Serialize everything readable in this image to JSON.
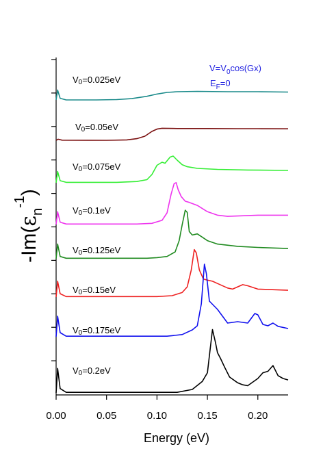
{
  "chart_data": {
    "type": "line",
    "xlabel": "Energy (eV)",
    "ylabel": "-Im(εn -1)",
    "ylabel_parts": {
      "prefix": "-Im(",
      "epsilon": "ε",
      "sub": "n",
      "sup": "-1",
      "suffix": ")"
    },
    "xlim": [
      0.0,
      0.23
    ],
    "xticks": [
      "0.00",
      "0.05",
      "0.10",
      "0.15",
      "0.20"
    ],
    "xtick_values": [
      0.0,
      0.05,
      0.1,
      0.15,
      0.2
    ],
    "yticks_visible": true,
    "grid": false,
    "annotation": {
      "potential": "V=V0cos(Gx)",
      "potential_parts": {
        "a": "V=V",
        "sub": "0",
        "b": "cos(Gx)"
      },
      "fermi": "EF=0",
      "fermi_parts": {
        "a": "E",
        "sub": "F",
        "b": "=0"
      },
      "color": "#2020e0"
    },
    "series": [
      {
        "label": "V0=0.025eV",
        "label_parts": {
          "a": "V",
          "sub": "0",
          "b": "=0.025eV"
        },
        "color": "#1a8a8a",
        "points": [
          [
            0.0,
            0.0
          ],
          [
            0.0015,
            0.6
          ],
          [
            0.004,
            0.1
          ],
          [
            0.01,
            0.0
          ],
          [
            0.04,
            0.0
          ],
          [
            0.06,
            0.02
          ],
          [
            0.075,
            0.08
          ],
          [
            0.09,
            0.22
          ],
          [
            0.1,
            0.36
          ],
          [
            0.11,
            0.46
          ],
          [
            0.12,
            0.5
          ],
          [
            0.14,
            0.52
          ],
          [
            0.17,
            0.5
          ],
          [
            0.2,
            0.5
          ],
          [
            0.23,
            0.48
          ]
        ]
      },
      {
        "label": "V0=0.05eV",
        "label_parts": {
          "a": "V",
          "sub": "0",
          "b": "=0.05eV"
        },
        "color": "#7a0f0f",
        "points": [
          [
            0.0,
            0.0
          ],
          [
            0.002,
            0.08
          ],
          [
            0.006,
            0.01
          ],
          [
            0.05,
            0.0
          ],
          [
            0.07,
            0.03
          ],
          [
            0.08,
            0.12
          ],
          [
            0.088,
            0.3
          ],
          [
            0.095,
            0.65
          ],
          [
            0.1,
            0.82
          ],
          [
            0.105,
            0.88
          ],
          [
            0.12,
            0.86
          ],
          [
            0.15,
            0.86
          ],
          [
            0.18,
            0.85
          ],
          [
            0.2,
            0.85
          ],
          [
            0.23,
            0.84
          ]
        ]
      },
      {
        "label": "V0=0.075eV",
        "label_parts": {
          "a": "V",
          "sub": "0",
          "b": "=0.075eV"
        },
        "color": "#33ee33",
        "points": [
          [
            0.0,
            0.0
          ],
          [
            0.0015,
            0.55
          ],
          [
            0.004,
            0.1
          ],
          [
            0.01,
            0.02
          ],
          [
            0.06,
            0.02
          ],
          [
            0.08,
            0.06
          ],
          [
            0.09,
            0.15
          ],
          [
            0.095,
            0.4
          ],
          [
            0.1,
            0.85
          ],
          [
            0.105,
            1.0
          ],
          [
            0.108,
            0.95
          ],
          [
            0.113,
            1.25
          ],
          [
            0.116,
            1.3
          ],
          [
            0.12,
            1.1
          ],
          [
            0.125,
            0.88
          ],
          [
            0.13,
            0.78
          ],
          [
            0.14,
            0.7
          ],
          [
            0.16,
            0.65
          ],
          [
            0.19,
            0.62
          ],
          [
            0.23,
            0.6
          ]
        ]
      },
      {
        "label": "V0=0.1eV",
        "label_parts": {
          "a": "V",
          "sub": "0",
          "b": "=0.1eV"
        },
        "color": "#ee33ee",
        "points": [
          [
            0.0,
            0.0
          ],
          [
            0.0015,
            0.55
          ],
          [
            0.004,
            0.1
          ],
          [
            0.01,
            0.02
          ],
          [
            0.08,
            0.02
          ],
          [
            0.095,
            0.05
          ],
          [
            0.105,
            0.18
          ],
          [
            0.11,
            0.5
          ],
          [
            0.114,
            1.3
          ],
          [
            0.117,
            1.75
          ],
          [
            0.119,
            1.8
          ],
          [
            0.121,
            1.5
          ],
          [
            0.124,
            1.2
          ],
          [
            0.128,
            1.0
          ],
          [
            0.132,
            0.95
          ],
          [
            0.14,
            0.82
          ],
          [
            0.15,
            0.55
          ],
          [
            0.16,
            0.4
          ],
          [
            0.17,
            0.35
          ],
          [
            0.2,
            0.4
          ],
          [
            0.23,
            0.4
          ]
        ]
      },
      {
        "label": "V0=0.125eV",
        "label_parts": {
          "a": "V",
          "sub": "0",
          "b": "=0.125eV"
        },
        "color": "#1f8a1f",
        "points": [
          [
            0.0,
            0.0
          ],
          [
            0.0015,
            0.65
          ],
          [
            0.004,
            0.1
          ],
          [
            0.01,
            0.02
          ],
          [
            0.09,
            0.02
          ],
          [
            0.1,
            0.05
          ],
          [
            0.11,
            0.1
          ],
          [
            0.118,
            0.3
          ],
          [
            0.122,
            0.8
          ],
          [
            0.125,
            1.5
          ],
          [
            0.128,
            2.15
          ],
          [
            0.13,
            2.05
          ],
          [
            0.132,
            1.2
          ],
          [
            0.135,
            1.05
          ],
          [
            0.14,
            1.1
          ],
          [
            0.145,
            0.95
          ],
          [
            0.15,
            0.8
          ],
          [
            0.16,
            0.65
          ],
          [
            0.18,
            0.55
          ],
          [
            0.2,
            0.5
          ],
          [
            0.23,
            0.45
          ]
        ]
      },
      {
        "label": "V0=0.15eV",
        "label_parts": {
          "a": "V",
          "sub": "0",
          "b": "=0.15eV"
        },
        "color": "#ee2020",
        "points": [
          [
            0.0,
            0.0
          ],
          [
            0.0015,
            0.7
          ],
          [
            0.004,
            0.15
          ],
          [
            0.01,
            0.02
          ],
          [
            0.1,
            0.02
          ],
          [
            0.115,
            0.06
          ],
          [
            0.125,
            0.2
          ],
          [
            0.13,
            0.45
          ],
          [
            0.134,
            1.2
          ],
          [
            0.137,
            2.1
          ],
          [
            0.139,
            1.95
          ],
          [
            0.142,
            1.2
          ],
          [
            0.146,
            0.8
          ],
          [
            0.15,
            0.75
          ],
          [
            0.155,
            0.7
          ],
          [
            0.16,
            0.6
          ],
          [
            0.17,
            0.4
          ],
          [
            0.175,
            0.35
          ],
          [
            0.18,
            0.45
          ],
          [
            0.185,
            0.55
          ],
          [
            0.19,
            0.5
          ],
          [
            0.2,
            0.35
          ],
          [
            0.23,
            0.3
          ]
        ]
      },
      {
        "label": "V0=0.175eV",
        "label_parts": {
          "a": "V",
          "sub": "0",
          "b": "=0.175eV"
        },
        "color": "#1010ee",
        "points": [
          [
            0.0,
            0.0
          ],
          [
            0.0015,
            0.75
          ],
          [
            0.004,
            0.15
          ],
          [
            0.01,
            0.02
          ],
          [
            0.11,
            0.02
          ],
          [
            0.125,
            0.08
          ],
          [
            0.135,
            0.25
          ],
          [
            0.14,
            0.4
          ],
          [
            0.144,
            1.2
          ],
          [
            0.147,
            2.65
          ],
          [
            0.149,
            2.3
          ],
          [
            0.152,
            1.3
          ],
          [
            0.156,
            1.15
          ],
          [
            0.16,
            1.0
          ],
          [
            0.165,
            0.75
          ],
          [
            0.17,
            0.5
          ],
          [
            0.18,
            0.55
          ],
          [
            0.19,
            0.5
          ],
          [
            0.197,
            0.85
          ],
          [
            0.2,
            0.8
          ],
          [
            0.205,
            0.45
          ],
          [
            0.21,
            0.4
          ],
          [
            0.215,
            0.5
          ],
          [
            0.22,
            0.38
          ],
          [
            0.23,
            0.3
          ]
        ]
      },
      {
        "label": "V0=0.2eV",
        "label_parts": {
          "a": "V",
          "sub": "0",
          "b": "=0.2eV"
        },
        "color": "#000000",
        "points": [
          [
            0.0,
            0.0
          ],
          [
            0.0015,
            0.85
          ],
          [
            0.004,
            0.15
          ],
          [
            0.01,
            0.02
          ],
          [
            0.12,
            0.02
          ],
          [
            0.135,
            0.12
          ],
          [
            0.145,
            0.4
          ],
          [
            0.15,
            0.7
          ],
          [
            0.153,
            1.6
          ],
          [
            0.155,
            2.2
          ],
          [
            0.158,
            1.75
          ],
          [
            0.16,
            1.4
          ],
          [
            0.163,
            1.2
          ],
          [
            0.167,
            0.9
          ],
          [
            0.172,
            0.55
          ],
          [
            0.18,
            0.35
          ],
          [
            0.185,
            0.28
          ],
          [
            0.19,
            0.25
          ],
          [
            0.2,
            0.5
          ],
          [
            0.205,
            0.7
          ],
          [
            0.21,
            0.75
          ],
          [
            0.215,
            0.95
          ],
          [
            0.22,
            0.6
          ],
          [
            0.225,
            0.5
          ],
          [
            0.23,
            0.45
          ]
        ]
      }
    ]
  }
}
